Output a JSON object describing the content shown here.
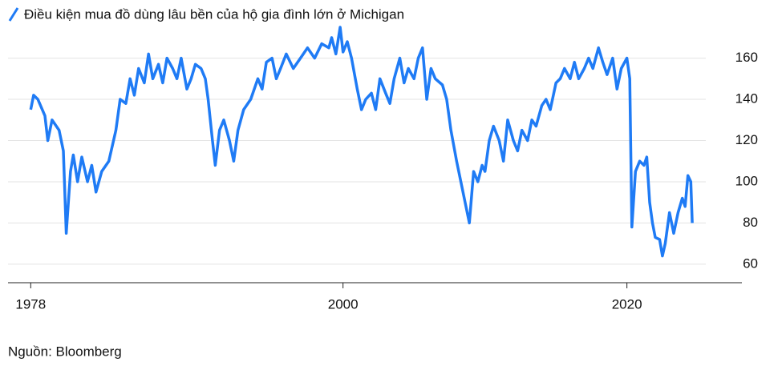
{
  "chart_data": {
    "type": "line",
    "title": "Điều kiện mua đồ dùng lâu bền của hộ gia đình lớn ở Michigan",
    "source": "Nguồn: Bloomberg",
    "series": [
      {
        "color": "#1f7bf5",
        "x": [
          1978.0,
          1978.2,
          1978.5,
          1979.0,
          1979.2,
          1979.5,
          1980.0,
          1980.3,
          1980.5,
          1980.8,
          1981.0,
          1981.3,
          1981.6,
          1982.0,
          1982.3,
          1982.6,
          1983.0,
          1983.5,
          1984.0,
          1984.3,
          1984.7,
          1985.0,
          1985.3,
          1985.6,
          1986.0,
          1986.3,
          1986.6,
          1987.0,
          1987.3,
          1987.6,
          1988.0,
          1988.3,
          1988.6,
          1989.0,
          1989.3,
          1989.6,
          1990.0,
          1990.3,
          1990.5,
          1990.8,
          1991.0,
          1991.3,
          1991.6,
          1992.0,
          1992.3,
          1992.6,
          1993.0,
          1993.5,
          1994.0,
          1994.3,
          1994.6,
          1995.0,
          1995.3,
          1995.6,
          1996.0,
          1996.5,
          1997.0,
          1997.5,
          1998.0,
          1998.5,
          1999.0,
          1999.2,
          1999.5,
          1999.8,
          2000.0,
          2000.3,
          2000.6,
          2001.0,
          2001.3,
          2001.6,
          2002.0,
          2002.3,
          2002.6,
          2003.0,
          2003.3,
          2003.6,
          2004.0,
          2004.3,
          2004.6,
          2005.0,
          2005.3,
          2005.6,
          2005.9,
          2006.2,
          2006.5,
          2007.0,
          2007.3,
          2007.6,
          2008.0,
          2008.3,
          2008.6,
          2008.9,
          2009.2,
          2009.5,
          2009.8,
          2010.0,
          2010.3,
          2010.6,
          2011.0,
          2011.3,
          2011.6,
          2012.0,
          2012.3,
          2012.6,
          2013.0,
          2013.3,
          2013.6,
          2014.0,
          2014.3,
          2014.6,
          2015.0,
          2015.3,
          2015.6,
          2016.0,
          2016.3,
          2016.6,
          2017.0,
          2017.3,
          2017.6,
          2018.0,
          2018.3,
          2018.6,
          2019.0,
          2019.3,
          2019.6,
          2020.0,
          2020.2,
          2020.35,
          2020.6,
          2020.9,
          2021.2,
          2021.4,
          2021.6,
          2021.8,
          2022.0,
          2022.3,
          2022.5,
          2022.7,
          2023.0,
          2023.3,
          2023.6,
          2023.9,
          2024.1,
          2024.3,
          2024.5,
          2024.6
        ],
        "values": [
          135,
          142,
          140,
          132,
          120,
          130,
          125,
          115,
          75,
          105,
          113,
          100,
          112,
          100,
          108,
          95,
          105,
          110,
          125,
          140,
          138,
          150,
          142,
          155,
          148,
          162,
          150,
          157,
          148,
          160,
          155,
          150,
          160,
          145,
          150,
          157,
          155,
          150,
          140,
          120,
          108,
          125,
          130,
          120,
          110,
          125,
          135,
          140,
          150,
          145,
          158,
          160,
          150,
          155,
          162,
          155,
          160,
          165,
          160,
          167,
          165,
          170,
          162,
          175,
          163,
          168,
          160,
          145,
          135,
          140,
          143,
          135,
          150,
          143,
          138,
          150,
          160,
          148,
          155,
          150,
          160,
          165,
          140,
          155,
          150,
          147,
          140,
          125,
          110,
          100,
          90,
          80,
          105,
          100,
          108,
          105,
          120,
          127,
          120,
          110,
          130,
          120,
          115,
          125,
          120,
          130,
          127,
          137,
          140,
          135,
          148,
          150,
          155,
          150,
          158,
          150,
          155,
          160,
          155,
          165,
          158,
          152,
          160,
          145,
          155,
          160,
          150,
          78,
          105,
          110,
          108,
          112,
          90,
          80,
          73,
          72,
          64,
          70,
          85,
          75,
          85,
          92,
          88,
          103,
          100,
          80
        ]
      }
    ],
    "xlim": [
      1976.4,
      2028.1
    ],
    "xticks": [
      1978,
      2000,
      2020
    ],
    "ylim": [
      51,
      175
    ],
    "yticks": [
      60,
      80,
      100,
      120,
      140,
      160
    ],
    "grid": true
  }
}
